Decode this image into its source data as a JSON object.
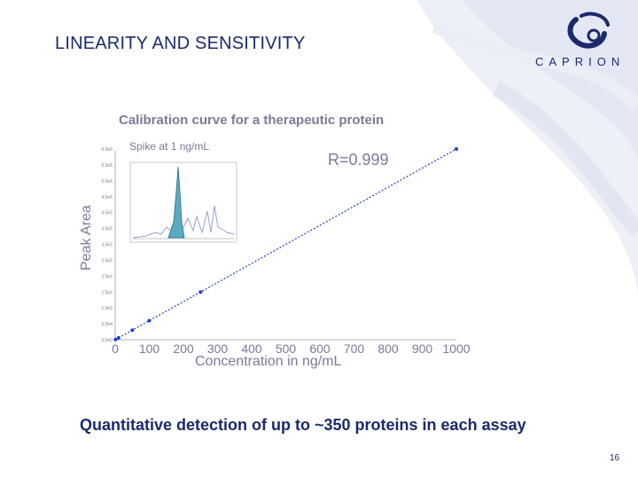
{
  "slide": {
    "title": "LINEARITY AND SENSITIVITY",
    "caption": "Quantitative detection of up to ~350 proteins in each assay",
    "page_number": "16",
    "logo_text": "CAPRION"
  },
  "colors": {
    "title": "#1a2a6c",
    "line": "#1f3fbf",
    "chart_text": "#7a7a9a",
    "inset_peak": "#5aaac0",
    "background_swirl": "#e8ebf6"
  },
  "icons": {
    "logo": "caprion-swirl-logo"
  },
  "chart_data": {
    "type": "line",
    "title": "Calibration curve for a therapeutic protein",
    "xlabel": "Concentration in ng/mL",
    "ylabel": "Peak Area",
    "annotation": "R=0.999",
    "xlim": [
      0,
      1000
    ],
    "x_ticks": [
      "0",
      "100",
      "200",
      "300",
      "400",
      "500",
      "600",
      "700",
      "800",
      "900",
      "1000"
    ],
    "y_ticks": [
      "0.0e0",
      "5.0e4",
      "1.0e5",
      "1.5e5",
      "2.0e5",
      "2.5e5",
      "3.0e5",
      "3.5e5",
      "4.0e5",
      "4.5e5",
      "5.0e5",
      "5.5e5",
      "6.0e5"
    ],
    "ylim": [
      0,
      600000
    ],
    "grid": false,
    "series": [
      {
        "x": [
          1,
          10,
          50,
          100,
          250,
          1000
        ],
        "y": [
          600,
          6000,
          30000,
          60000,
          150000,
          600000
        ]
      }
    ],
    "inset": {
      "label": "Spike at 1 ng/mL",
      "type": "chromatogram"
    }
  }
}
